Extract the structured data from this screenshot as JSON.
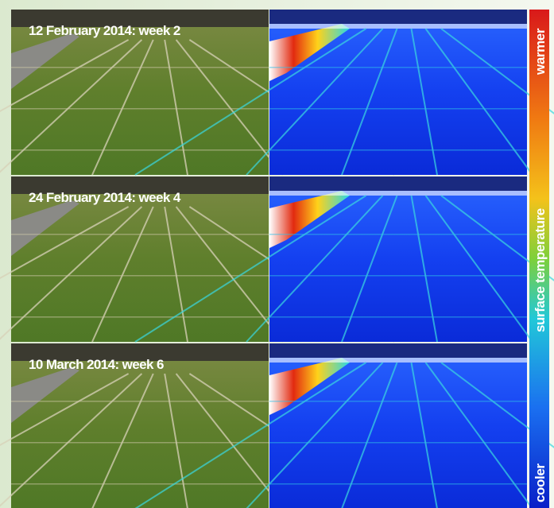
{
  "panels": [
    {
      "label": "12 February 2014: week 2"
    },
    {
      "label": "24 February 2014: week 4"
    },
    {
      "label": "10 March 2014: week 6"
    }
  ],
  "colorbar": {
    "top_label": "warmer",
    "middle_label": "surface temperature",
    "bottom_label": "cooler"
  }
}
